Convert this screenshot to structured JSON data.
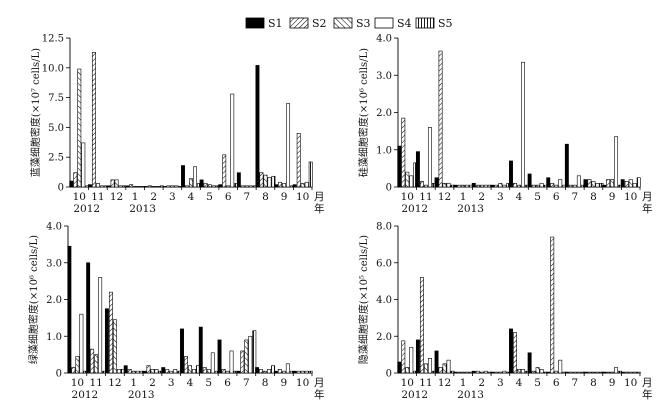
{
  "legend": [
    "S1",
    "S2",
    "S3",
    "S4",
    "S5"
  ],
  "month_labels": [
    "10",
    "11",
    "12",
    "1",
    "2",
    "3",
    "4",
    "5",
    "6",
    "7",
    "8",
    "9",
    "10"
  ],
  "year_labels": [
    "2012",
    "2013"
  ],
  "month_unit": "月",
  "year_unit": "年",
  "chart_data": [
    {
      "type": "bar",
      "ylabel": "蓝藻细胞密度(×10⁷ cells/L)",
      "ylim": [
        0,
        12.5
      ],
      "yticks": [
        "0",
        "2.5",
        "5.0",
        "7.5",
        "10.0",
        "12.5"
      ],
      "categories": [
        "10",
        "11",
        "12",
        "1",
        "2",
        "3",
        "4",
        "5",
        "6",
        "7",
        "8",
        "9",
        "10"
      ],
      "series": [
        {
          "name": "S1",
          "values": [
            0.5,
            0.2,
            0.1,
            0.1,
            0.0,
            0.0,
            1.8,
            0.6,
            0.2,
            1.2,
            10.2,
            0.2,
            0.2
          ]
        },
        {
          "name": "S2",
          "values": [
            1.2,
            11.3,
            0.6,
            0.2,
            0.1,
            0.1,
            0.1,
            0.3,
            2.7,
            0.1,
            1.2,
            0.4,
            4.5
          ]
        },
        {
          "name": "S3",
          "values": [
            9.9,
            0.3,
            0.6,
            0.0,
            0.0,
            0.1,
            0.7,
            0.2,
            0.1,
            0.1,
            1.0,
            0.3,
            0.3
          ]
        },
        {
          "name": "S4",
          "values": [
            3.7,
            0.1,
            0.1,
            0.0,
            0.0,
            0.1,
            1.7,
            0.1,
            7.8,
            0.1,
            0.8,
            7.0,
            0.4
          ]
        },
        {
          "name": "S5",
          "values": [
            0.1,
            0.1,
            0.1,
            0.0,
            0.1,
            0.0,
            0.3,
            0.1,
            0.3,
            0.1,
            0.9,
            0.1,
            2.1
          ]
        }
      ]
    },
    {
      "type": "bar",
      "ylabel": "硅藻细胞密度(×10⁶ cells/L)",
      "ylim": [
        0,
        4.0
      ],
      "yticks": [
        "0",
        "1.0",
        "2.0",
        "3.0",
        "4.0"
      ],
      "categories": [
        "10",
        "11",
        "12",
        "1",
        "2",
        "3",
        "4",
        "5",
        "6",
        "7",
        "8",
        "9",
        "10"
      ],
      "series": [
        {
          "name": "S1",
          "values": [
            1.1,
            0.95,
            0.25,
            0.05,
            0.1,
            0.05,
            0.7,
            0.35,
            0.25,
            1.15,
            0.2,
            0.05,
            0.2
          ]
        },
        {
          "name": "S2",
          "values": [
            1.85,
            0.15,
            3.65,
            0.05,
            0.05,
            0.05,
            0.1,
            0.05,
            0.1,
            0.05,
            0.2,
            0.2,
            0.15
          ]
        },
        {
          "name": "S3",
          "values": [
            0.4,
            0.05,
            0.1,
            0.05,
            0.05,
            0.1,
            0.05,
            0.05,
            0.05,
            0.05,
            0.15,
            0.2,
            0.2
          ]
        },
        {
          "name": "S4",
          "values": [
            0.3,
            1.6,
            0.1,
            0.05,
            0.05,
            0.05,
            3.35,
            0.1,
            0.2,
            0.3,
            0.1,
            1.35,
            0.1
          ]
        },
        {
          "name": "S5",
          "values": [
            0.65,
            0.1,
            0.05,
            0.05,
            0.05,
            0.1,
            0.05,
            0.05,
            0.05,
            0.05,
            0.1,
            0.05,
            0.25
          ]
        }
      ]
    },
    {
      "type": "bar",
      "ylabel": "绿藻细胞密度(×10⁶ cells/L)",
      "ylim": [
        0,
        4.0
      ],
      "yticks": [
        "0",
        "1.0",
        "2.0",
        "3.0",
        "4.0"
      ],
      "categories": [
        "10",
        "11",
        "12",
        "1",
        "2",
        "3",
        "4",
        "5",
        "6",
        "7",
        "8",
        "9",
        "10"
      ],
      "series": [
        {
          "name": "S1",
          "values": [
            3.45,
            3.0,
            1.75,
            0.2,
            0.05,
            0.15,
            1.2,
            1.25,
            0.9,
            0.05,
            0.15,
            0.05,
            0.05
          ]
        },
        {
          "name": "S2",
          "values": [
            0.15,
            0.65,
            2.2,
            0.1,
            0.2,
            0.1,
            0.45,
            0.15,
            0.1,
            0.6,
            0.1,
            0.1,
            0.05
          ]
        },
        {
          "name": "S3",
          "values": [
            0.45,
            0.5,
            1.45,
            0.05,
            0.1,
            0.05,
            0.2,
            0.1,
            0.05,
            0.9,
            0.05,
            0.05,
            0.05
          ]
        },
        {
          "name": "S4",
          "values": [
            1.6,
            2.6,
            0.1,
            0.05,
            0.1,
            0.1,
            0.1,
            0.55,
            0.6,
            1.0,
            0.1,
            0.25,
            0.05
          ]
        },
        {
          "name": "S5",
          "values": [
            0.05,
            0.05,
            0.1,
            0.05,
            0.05,
            0.05,
            0.2,
            0.05,
            0.05,
            1.15,
            0.2,
            0.05,
            0.05
          ]
        }
      ]
    },
    {
      "type": "bar",
      "ylabel": "隐藻细胞密度(×10⁵ cells/L)",
      "ylim": [
        0,
        8.0
      ],
      "yticks": [
        "0",
        "2.0",
        "4.0",
        "6.0",
        "8.0"
      ],
      "categories": [
        "10",
        "11",
        "12",
        "1",
        "2",
        "3",
        "4",
        "5",
        "6",
        "7",
        "8",
        "9",
        "10"
      ],
      "series": [
        {
          "name": "S1",
          "values": [
            0.6,
            1.8,
            1.2,
            0.05,
            0.1,
            0.05,
            2.4,
            1.1,
            0.05,
            0.05,
            0.05,
            0.05,
            0.05
          ]
        },
        {
          "name": "S2",
          "values": [
            1.75,
            5.2,
            0.3,
            0.05,
            0.1,
            0.05,
            2.2,
            0.1,
            7.4,
            0.05,
            0.05,
            0.05,
            0.05
          ]
        },
        {
          "name": "S3",
          "values": [
            0.3,
            0.5,
            0.5,
            0.05,
            0.05,
            0.05,
            0.2,
            0.3,
            0.1,
            0.05,
            0.05,
            0.05,
            0.05
          ]
        },
        {
          "name": "S4",
          "values": [
            1.4,
            0.8,
            0.7,
            0.05,
            0.1,
            0.1,
            0.2,
            0.2,
            0.7,
            0.05,
            0.05,
            0.3,
            0.05
          ]
        },
        {
          "name": "S5",
          "values": [
            0.1,
            0.1,
            0.1,
            0.05,
            0.05,
            0.05,
            0.1,
            0.05,
            0.05,
            0.05,
            0.05,
            0.1,
            0.05
          ]
        }
      ]
    }
  ]
}
